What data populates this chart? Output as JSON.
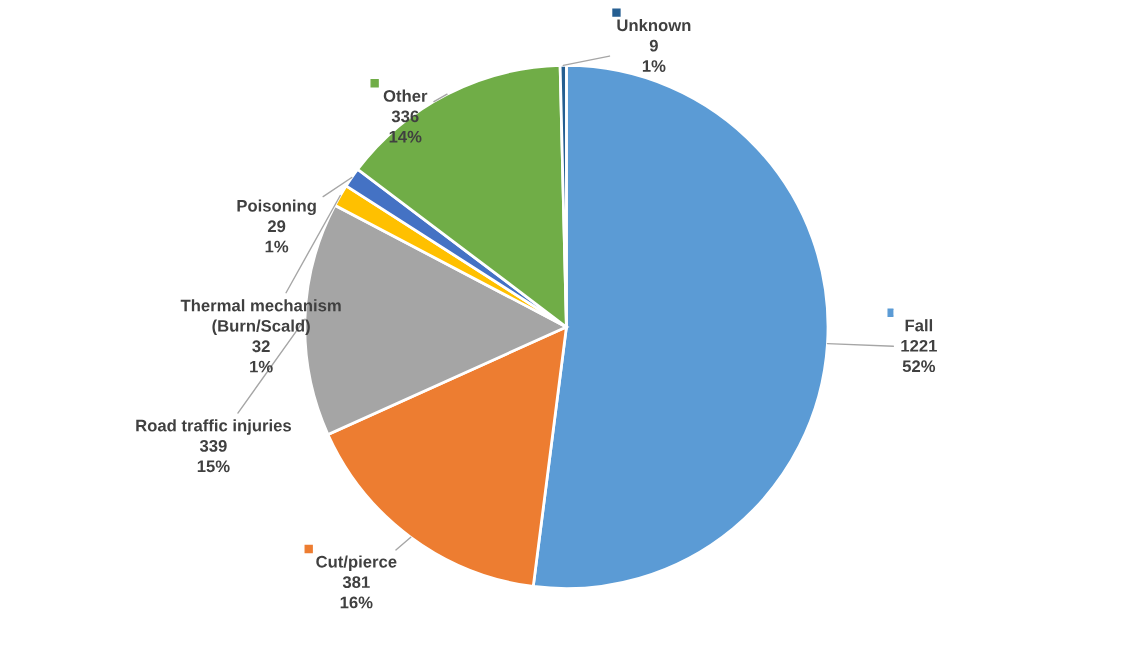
{
  "chart_data": {
    "type": "pie",
    "categories": [
      "Fall",
      "Cut/pierce",
      "Road traffic injuries",
      "Thermal mechanism (Burn/Scald)",
      "Poisoning",
      "Other",
      "Unknown"
    ],
    "values": [
      1221,
      381,
      339,
      32,
      29,
      336,
      9
    ],
    "colors": [
      "#5b9bd5",
      "#ed7d31",
      "#a5a5a5",
      "#ffc000",
      "#4472c4",
      "#70ad47",
      "#255e91"
    ],
    "value_labels": [
      "1221\n52%",
      "381\n16%",
      "339\n15%",
      "32\n1%",
      "29\n1%",
      "336\n14%",
      "9\n1%"
    ],
    "legend": "top"
  }
}
